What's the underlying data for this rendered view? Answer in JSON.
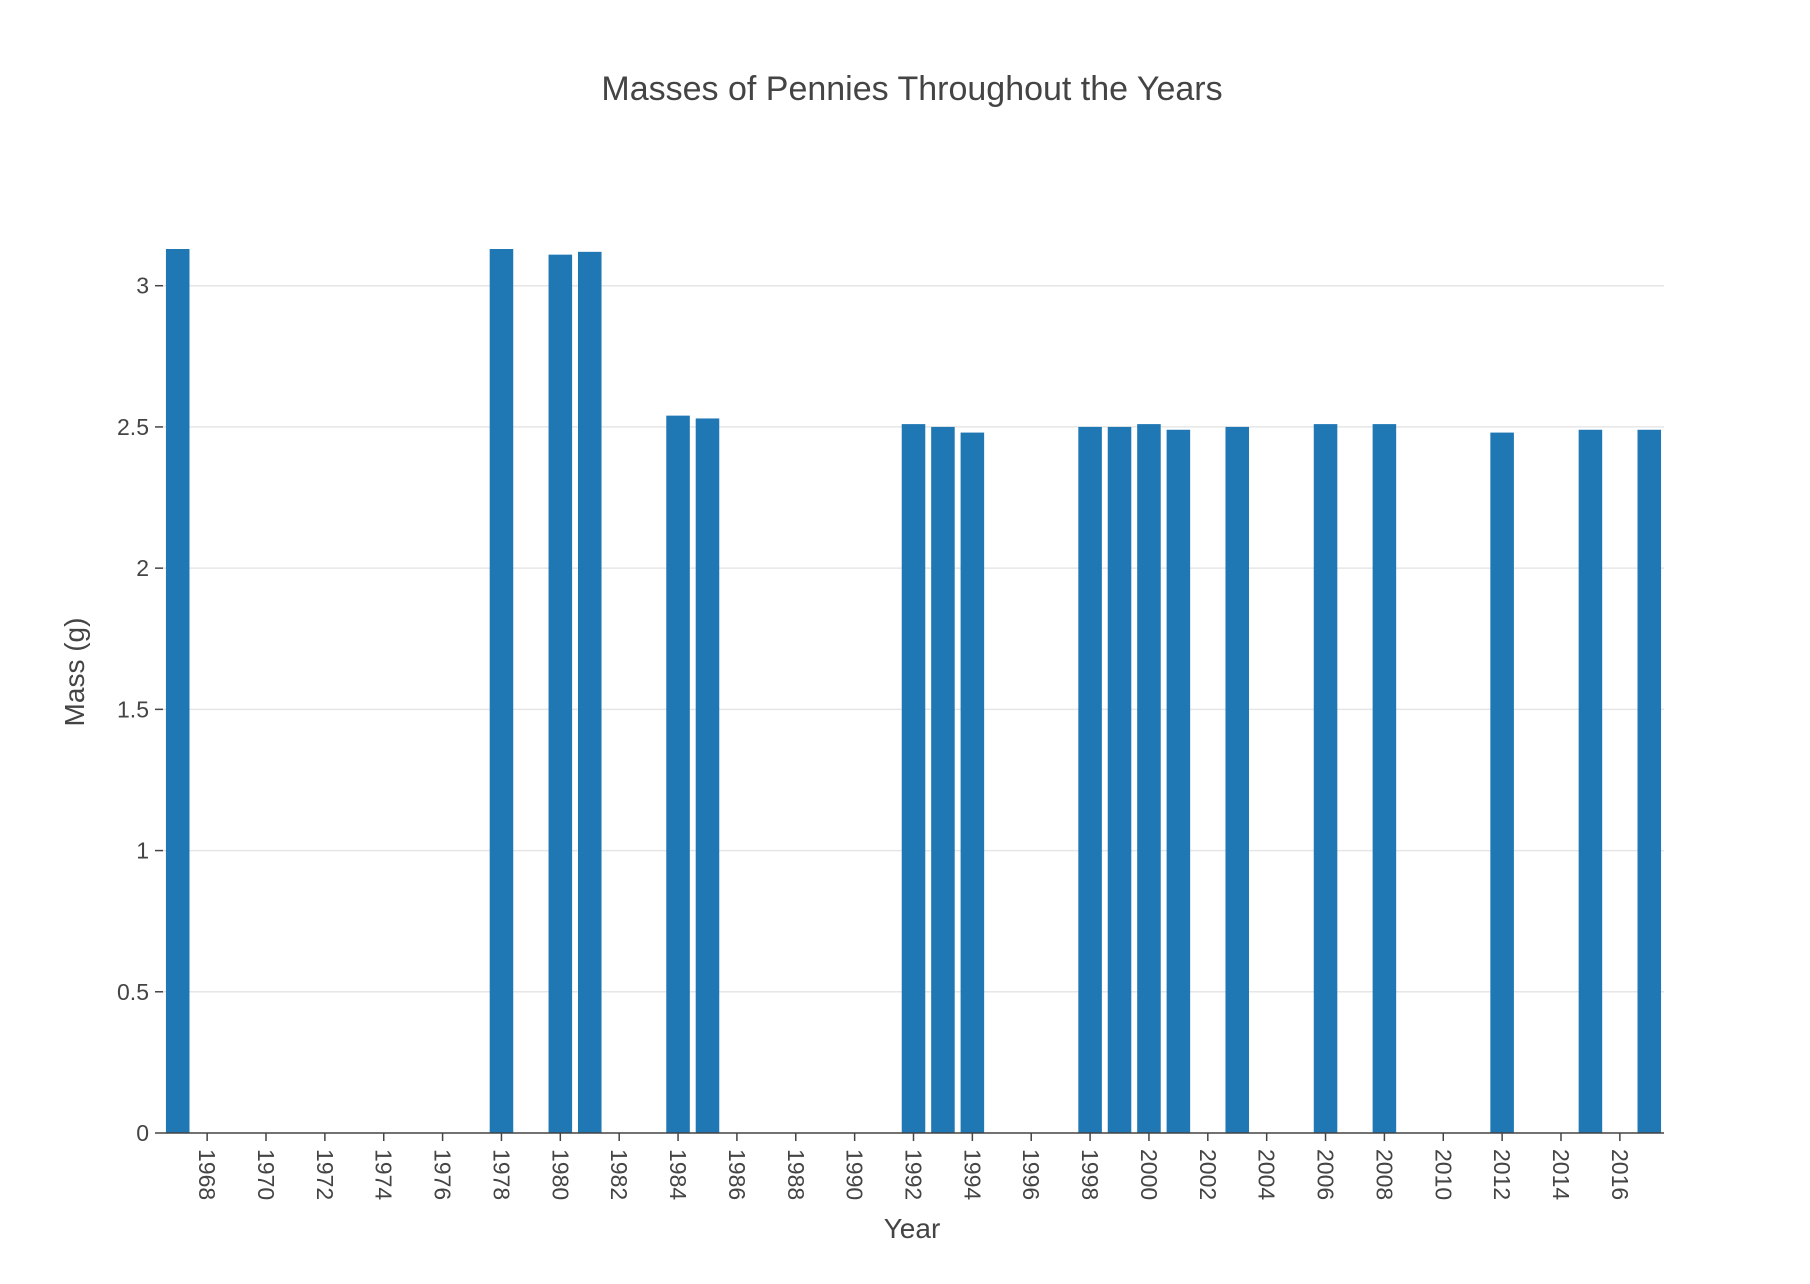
{
  "chart_data": {
    "type": "bar",
    "title": "Masses of Pennies Throughout the Years",
    "xlabel": "Year",
    "ylabel": "Mass (g)",
    "x": [
      1967,
      1978,
      1980,
      1981,
      1984,
      1985,
      1992,
      1993,
      1994,
      1998,
      1999,
      2000,
      2001,
      2003,
      2006,
      2008,
      2012,
      2015,
      2017
    ],
    "values": [
      3.13,
      3.13,
      3.11,
      3.12,
      2.54,
      2.53,
      2.51,
      2.5,
      2.48,
      2.5,
      2.5,
      2.51,
      2.49,
      2.5,
      2.51,
      2.51,
      2.48,
      2.49,
      2.49
    ],
    "xlim": [
      1966.5,
      2017.5
    ],
    "ylim": [
      0,
      3.13
    ],
    "x_ticks": [
      "1968",
      "1970",
      "1972",
      "1974",
      "1976",
      "1978",
      "1980",
      "1982",
      "1984",
      "1986",
      "1988",
      "1990",
      "1992",
      "1994",
      "1996",
      "1998",
      "2000",
      "2002",
      "2004",
      "2006",
      "2008",
      "2010",
      "2012",
      "2014",
      "2016"
    ],
    "y_ticks": [
      "0",
      "0.5",
      "1",
      "1.5",
      "2",
      "2.5",
      "3"
    ],
    "grid": true,
    "bar_color": "#1f77b4"
  }
}
